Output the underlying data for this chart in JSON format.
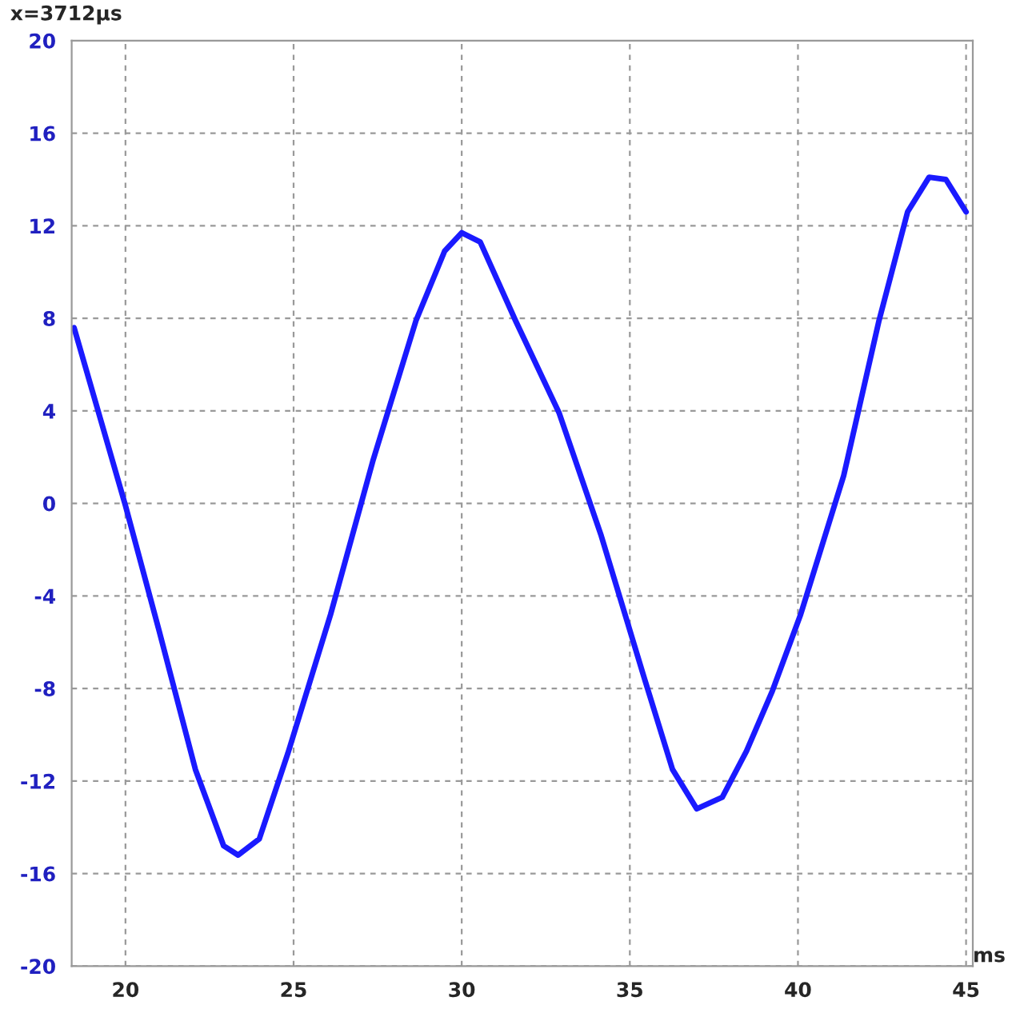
{
  "chart_data": {
    "type": "line",
    "xlabel": "ms",
    "annotations": [
      "x=3712µs"
    ],
    "x": [
      18.47,
      20.0,
      21.0,
      22.08,
      22.92,
      23.35,
      23.98,
      24.83,
      26.1,
      27.37,
      28.64,
      29.49,
      30.0,
      30.55,
      31.6,
      32.9,
      34.15,
      35.42,
      36.27,
      36.99,
      37.75,
      38.47,
      39.24,
      40.08,
      41.36,
      42.41,
      43.26,
      43.9,
      44.4,
      45.0
    ],
    "series": [
      {
        "color": "#1a1aff",
        "values": [
          7.6,
          -0.1,
          -5.5,
          -11.5,
          -14.8,
          -15.2,
          -14.5,
          -10.8,
          -4.8,
          1.9,
          7.9,
          10.9,
          11.7,
          11.3,
          7.9,
          3.9,
          -1.4,
          -7.5,
          -11.5,
          -13.2,
          -12.7,
          -10.7,
          -8.1,
          -4.8,
          1.2,
          7.9,
          12.6,
          14.1,
          14.0,
          12.6
        ]
      }
    ],
    "xlim": [
      18.4,
      45.2
    ],
    "ylim": [
      -20,
      20
    ],
    "xticks": [
      20,
      25,
      30,
      35,
      40,
      45
    ],
    "yticks": [
      -20,
      -16,
      -12,
      -8,
      -4,
      0,
      4,
      8,
      12,
      16,
      20
    ],
    "grid": true,
    "marker": "none",
    "line_style": "solid"
  }
}
